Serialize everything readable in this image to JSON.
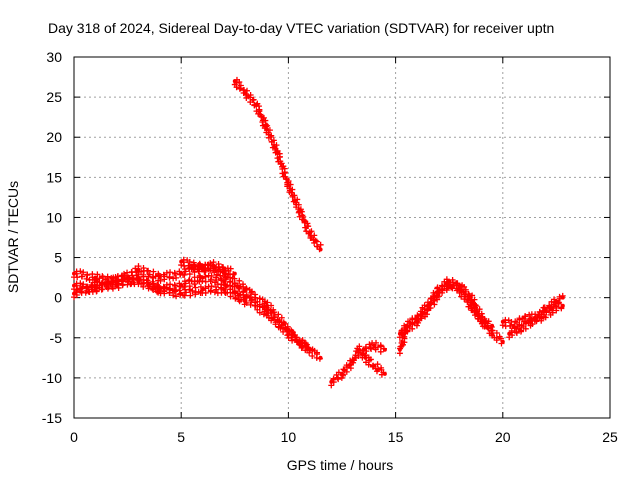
{
  "chart_data": {
    "type": "scatter",
    "title": "Day 318 of 2024, Sidereal Day-to-day VTEC variation (SDTVAR) for receiver uptn",
    "xlabel": "GPS time / hours",
    "ylabel": "SDTVAR / TECUs",
    "xlim": [
      0,
      25
    ],
    "ylim": [
      -15,
      30
    ],
    "xticks": [
      0,
      5,
      10,
      15,
      20,
      25
    ],
    "yticks": [
      -15,
      -10,
      -5,
      0,
      5,
      10,
      15,
      20,
      25,
      30
    ],
    "x_tick_labels": [
      "0",
      "5",
      "10",
      "15",
      "20",
      "25"
    ],
    "y_tick_labels": [
      "-15",
      "-10",
      "-5",
      "0",
      "5",
      "10",
      "15",
      "20",
      "25",
      "30"
    ],
    "grid": true,
    "marker_color": "#ff0000",
    "series": [
      {
        "name": "track-1",
        "x": [
          0,
          1,
          2,
          3,
          4,
          5,
          6,
          7,
          8,
          9,
          10,
          10.5,
          11,
          11.5
        ],
        "y": [
          3,
          2.5,
          2,
          3.5,
          2.5,
          3,
          4,
          3,
          1,
          -1,
          -4,
          -5.5,
          -6.5,
          -7.5
        ]
      },
      {
        "name": "track-2",
        "x": [
          0,
          1,
          2,
          3,
          4,
          5,
          6,
          7,
          8,
          9,
          10,
          11
        ],
        "y": [
          1.5,
          1,
          2.5,
          2,
          1,
          1.5,
          2.5,
          2,
          0,
          -2,
          -4.5,
          -6.5
        ]
      },
      {
        "name": "track-3",
        "x": [
          0,
          1,
          2,
          3,
          4,
          5,
          6,
          7,
          8
        ],
        "y": [
          0.5,
          1.5,
          1.5,
          2.5,
          1,
          0.5,
          1,
          1,
          -0.5
        ]
      },
      {
        "name": "track-4",
        "x": [
          5,
          5.5,
          6,
          6.5,
          7,
          7.5
        ],
        "y": [
          4.5,
          4,
          3.5,
          4,
          3.5,
          3
        ]
      },
      {
        "name": "track-5",
        "x": [
          7.5,
          8,
          8.5,
          9,
          9.5,
          10,
          10.5,
          11,
          11.5
        ],
        "y": [
          27,
          25.5,
          24,
          21,
          18,
          14,
          11,
          8,
          6
        ]
      },
      {
        "name": "track-6",
        "x": [
          12,
          12.5,
          13,
          13.3,
          13.6,
          14,
          14.5
        ],
        "y": [
          -10.5,
          -9.5,
          -8,
          -6.5,
          -7.5,
          -8.5,
          -9.5
        ]
      },
      {
        "name": "track-7",
        "x": [
          13.5,
          14,
          14.5
        ],
        "y": [
          -6.5,
          -6,
          -6.5
        ]
      },
      {
        "name": "track-8",
        "x": [
          15.2,
          15.5,
          16,
          16.5,
          17,
          17.5,
          18,
          18.5,
          19,
          19.5,
          20
        ],
        "y": [
          -6.5,
          -4,
          -3,
          -1.5,
          0.5,
          1.5,
          1.5,
          0,
          -2.5,
          -4.5,
          -5.5
        ]
      },
      {
        "name": "track-9",
        "x": [
          15.2,
          15.5,
          16,
          16.5,
          17,
          17.5,
          18,
          18.5,
          19,
          19.5
        ],
        "y": [
          -4.5,
          -3.5,
          -2.5,
          -1,
          1,
          2,
          1,
          -1,
          -3,
          -3.5
        ]
      },
      {
        "name": "track-10",
        "x": [
          20,
          20.5,
          21,
          21.5,
          22,
          22.5,
          22.8
        ],
        "y": [
          -3,
          -3.5,
          -2.5,
          -2.5,
          -1.5,
          -0.5,
          0
        ]
      },
      {
        "name": "track-11",
        "x": [
          20.3,
          20.8,
          21.3,
          21.8,
          22.3,
          22.8
        ],
        "y": [
          -4.5,
          -4,
          -3,
          -2.5,
          -1.5,
          -1
        ]
      }
    ]
  }
}
